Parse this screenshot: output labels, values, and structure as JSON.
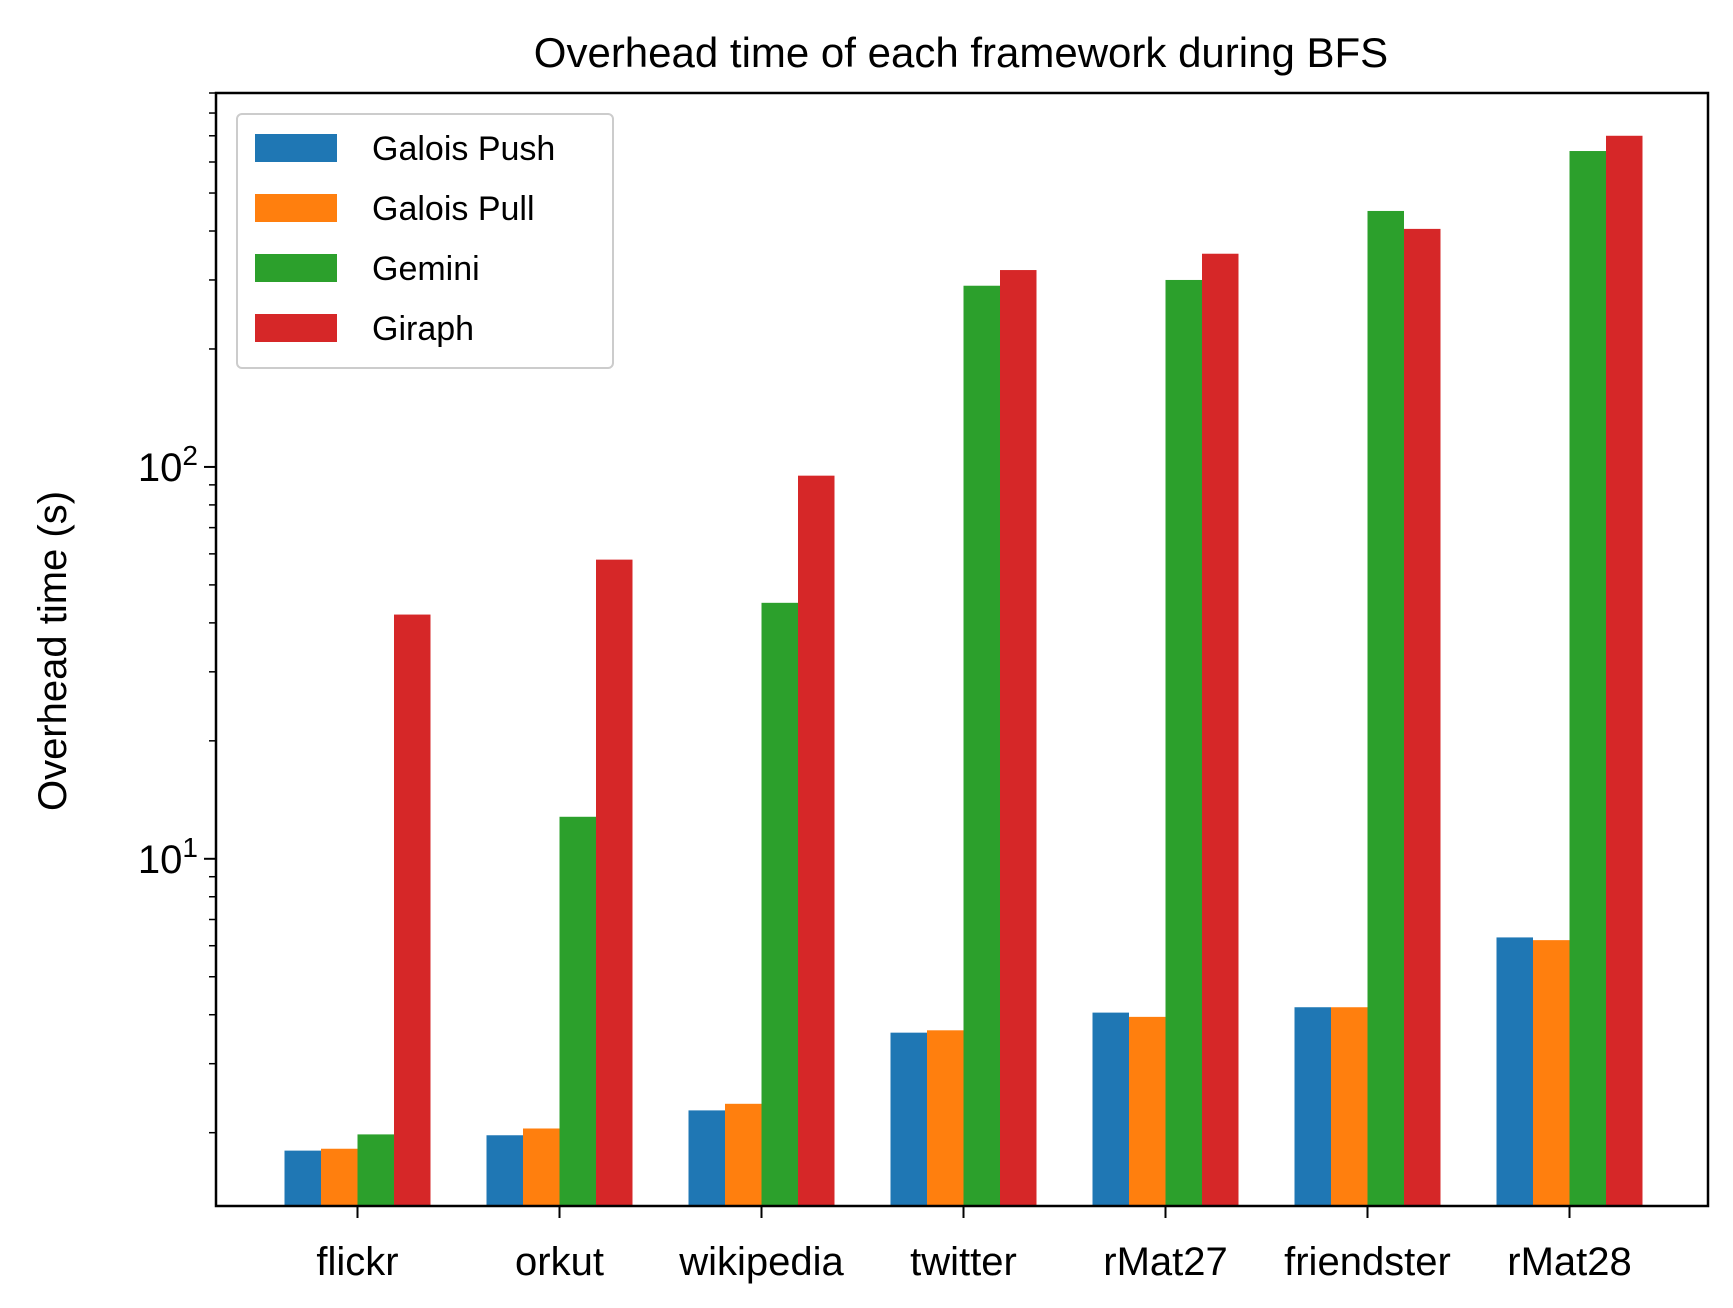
{
  "chart_data": {
    "type": "bar",
    "title": "Overhead time of each framework during BFS",
    "xlabel": "",
    "ylabel": "Overhead time (s)",
    "yscale": "log",
    "ylim": [
      1.3,
      900
    ],
    "y_major_ticks": [
      {
        "value": 10,
        "base": "10",
        "exp": "1"
      },
      {
        "value": 100,
        "base": "10",
        "exp": "2"
      }
    ],
    "grid": false,
    "legend_position": "top-left",
    "categories": [
      "flickr",
      "orkut",
      "wikipedia",
      "twitter",
      "rMat27",
      "friendster",
      "rMat28"
    ],
    "series": [
      {
        "name": "Galois Push",
        "color": "#1f77b4",
        "values": [
          1.8,
          1.97,
          2.28,
          3.6,
          4.05,
          4.18,
          6.3
        ]
      },
      {
        "name": "Galois Pull",
        "color": "#ff7f0e",
        "values": [
          1.82,
          2.05,
          2.37,
          3.65,
          3.95,
          4.18,
          6.2
        ]
      },
      {
        "name": "Gemini",
        "color": "#2ca02c",
        "values": [
          1.98,
          12.8,
          45,
          290,
          300,
          450,
          640
        ]
      },
      {
        "name": "Giraph",
        "color": "#d62728",
        "values": [
          42,
          58,
          95,
          318,
          350,
          405,
          700
        ]
      }
    ]
  }
}
